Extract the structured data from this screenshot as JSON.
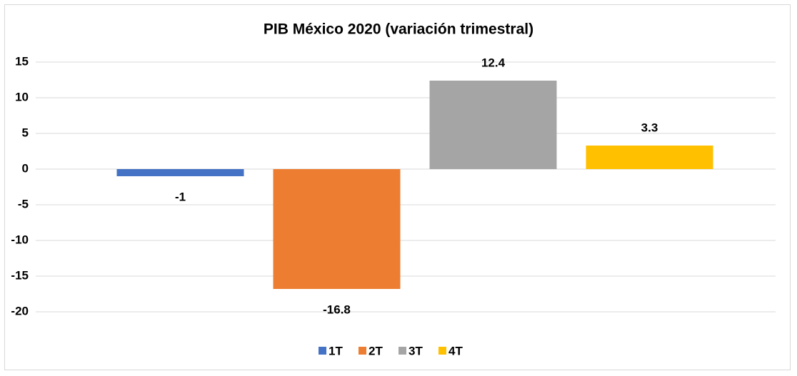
{
  "chart_data": {
    "type": "bar",
    "title": "PIB México 2020 (variación trimestral)",
    "series": [
      {
        "name": "1T",
        "color": "#4472c4",
        "values": [
          -1
        ]
      },
      {
        "name": "2T",
        "color": "#ed7d31",
        "values": [
          -16.8
        ]
      },
      {
        "name": "3T",
        "color": "#a5a5a5",
        "values": [
          12.4
        ]
      },
      {
        "name": "4T",
        "color": "#ffc000",
        "values": [
          3.3
        ]
      }
    ],
    "ylim": [
      -20,
      15
    ],
    "yticks": [
      -20,
      -15,
      -10,
      -5,
      0,
      5,
      10,
      15
    ],
    "grid": true,
    "legend": "bottom"
  }
}
